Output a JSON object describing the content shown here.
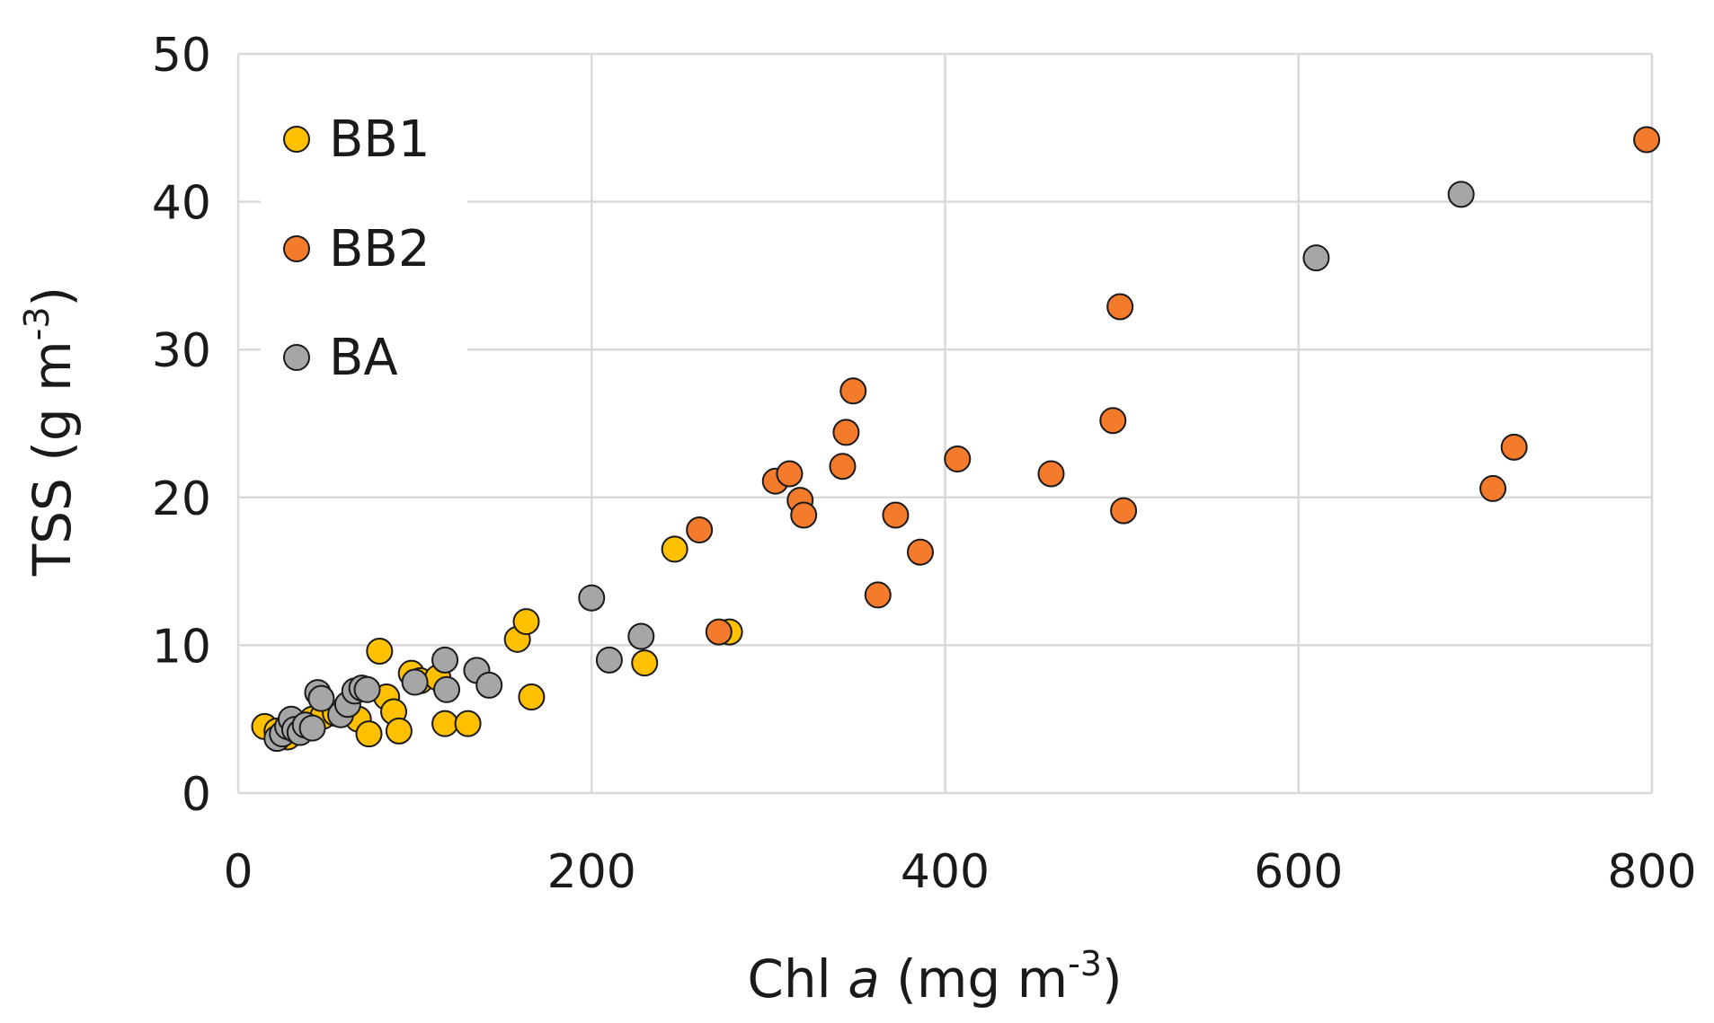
{
  "chart_data": {
    "type": "scatter",
    "title": "",
    "xlabel_parts": [
      "Chl ",
      "a",
      " (mg m",
      "-3",
      ")"
    ],
    "ylabel_parts": [
      "TSS (g m",
      "-3",
      ")"
    ],
    "xlim": [
      0,
      800
    ],
    "ylim": [
      0,
      50
    ],
    "xticks": [
      0,
      200,
      400,
      600,
      800
    ],
    "yticks": [
      0,
      10,
      20,
      30,
      40,
      50
    ],
    "grid": true,
    "legend_position": "top-left",
    "series": [
      {
        "name": "BB1",
        "color": "#ffc000",
        "points": [
          [
            15,
            4.5
          ],
          [
            22,
            4.2
          ],
          [
            28,
            3.8
          ],
          [
            35,
            4.6
          ],
          [
            42,
            5.0
          ],
          [
            48,
            5.2
          ],
          [
            55,
            5.4
          ],
          [
            62,
            5.6
          ],
          [
            68,
            5.0
          ],
          [
            74,
            4.0
          ],
          [
            80,
            9.6
          ],
          [
            84,
            6.5
          ],
          [
            88,
            5.5
          ],
          [
            91,
            4.2
          ],
          [
            98,
            8.1
          ],
          [
            103,
            7.6
          ],
          [
            113,
            7.8
          ],
          [
            117,
            4.7
          ],
          [
            130,
            4.7
          ],
          [
            158,
            10.4
          ],
          [
            163,
            11.6
          ],
          [
            166,
            6.5
          ],
          [
            230,
            8.8
          ],
          [
            247,
            16.5
          ],
          [
            278,
            10.9
          ]
        ]
      },
      {
        "name": "BB2",
        "color": "#f47a2c",
        "points": [
          [
            261,
            17.8
          ],
          [
            272,
            10.9
          ],
          [
            304,
            21.1
          ],
          [
            312,
            21.6
          ],
          [
            318,
            19.8
          ],
          [
            320,
            18.8
          ],
          [
            342,
            22.1
          ],
          [
            344,
            24.4
          ],
          [
            348,
            27.2
          ],
          [
            362,
            13.4
          ],
          [
            372,
            18.8
          ],
          [
            386,
            16.3
          ],
          [
            407,
            22.6
          ],
          [
            460,
            21.6
          ],
          [
            495,
            25.2
          ],
          [
            499,
            32.9
          ],
          [
            501,
            19.1
          ],
          [
            710,
            20.6
          ],
          [
            722,
            23.4
          ],
          [
            797,
            44.2
          ]
        ]
      },
      {
        "name": "BA",
        "color": "#a6a6a6",
        "points": [
          [
            22,
            3.7
          ],
          [
            25,
            4.0
          ],
          [
            28,
            4.5
          ],
          [
            30,
            5.0
          ],
          [
            32,
            4.3
          ],
          [
            35,
            4.1
          ],
          [
            38,
            4.6
          ],
          [
            42,
            4.4
          ],
          [
            45,
            6.8
          ],
          [
            47,
            6.4
          ],
          [
            58,
            5.3
          ],
          [
            62,
            6.0
          ],
          [
            66,
            6.9
          ],
          [
            70,
            7.1
          ],
          [
            73,
            7.0
          ],
          [
            100,
            7.5
          ],
          [
            117,
            9.0
          ],
          [
            118,
            7.0
          ],
          [
            135,
            8.3
          ],
          [
            142,
            7.3
          ],
          [
            200,
            13.2
          ],
          [
            210,
            9.0
          ],
          [
            228,
            10.6
          ],
          [
            610,
            36.2
          ],
          [
            692,
            40.5
          ]
        ]
      }
    ]
  }
}
